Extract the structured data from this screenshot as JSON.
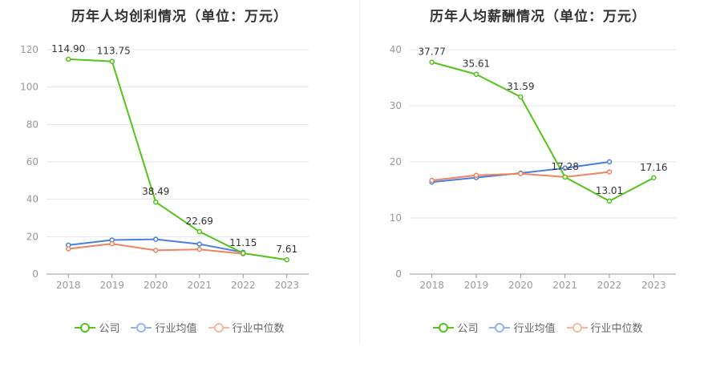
{
  "series_styles": [
    {
      "color": "#52c41a",
      "legend_color": "#52c41a"
    },
    {
      "color": "#4a7ee0",
      "legend_color": "#93b3ef"
    },
    {
      "color": "#f0845e",
      "legend_color": "#f6b8a0"
    }
  ],
  "chart_data": [
    {
      "type": "line",
      "title": "历年人均创利情况（单位：万元）",
      "categories": [
        "2018",
        "2019",
        "2020",
        "2021",
        "2022",
        "2023"
      ],
      "ylim": [
        0,
        120
      ],
      "yticks": [
        0,
        20,
        40,
        60,
        80,
        100,
        120
      ],
      "grid": true,
      "legend": "bottom",
      "series": [
        {
          "name": "公司",
          "values": [
            114.9,
            113.75,
            38.49,
            22.69,
            11.15,
            7.61
          ],
          "labels": [
            "114.90",
            "113.75",
            "38.49",
            "22.69",
            "11.15",
            "7.61"
          ]
        },
        {
          "name": "行业均值",
          "values": [
            15.5,
            18.2,
            18.6,
            16.0,
            11.6,
            null
          ]
        },
        {
          "name": "行业中位数",
          "values": [
            13.5,
            16.2,
            12.7,
            13.2,
            10.8,
            null
          ]
        }
      ]
    },
    {
      "type": "line",
      "title": "历年人均薪酬情况（单位：万元）",
      "categories": [
        "2018",
        "2019",
        "2020",
        "2021",
        "2022",
        "2023"
      ],
      "ylim": [
        0,
        40
      ],
      "yticks": [
        0,
        10,
        20,
        30,
        40
      ],
      "grid": true,
      "legend": "bottom",
      "series": [
        {
          "name": "公司",
          "values": [
            37.77,
            35.61,
            31.59,
            17.28,
            13.01,
            17.16
          ],
          "labels": [
            "37.77",
            "35.61",
            "31.59",
            "17.28",
            "13.01",
            "17.16"
          ]
        },
        {
          "name": "行业均值",
          "values": [
            16.4,
            17.2,
            18.0,
            18.9,
            20.0,
            null
          ]
        },
        {
          "name": "行业中位数",
          "values": [
            16.7,
            17.6,
            17.9,
            17.3,
            18.2,
            null
          ]
        }
      ]
    }
  ]
}
